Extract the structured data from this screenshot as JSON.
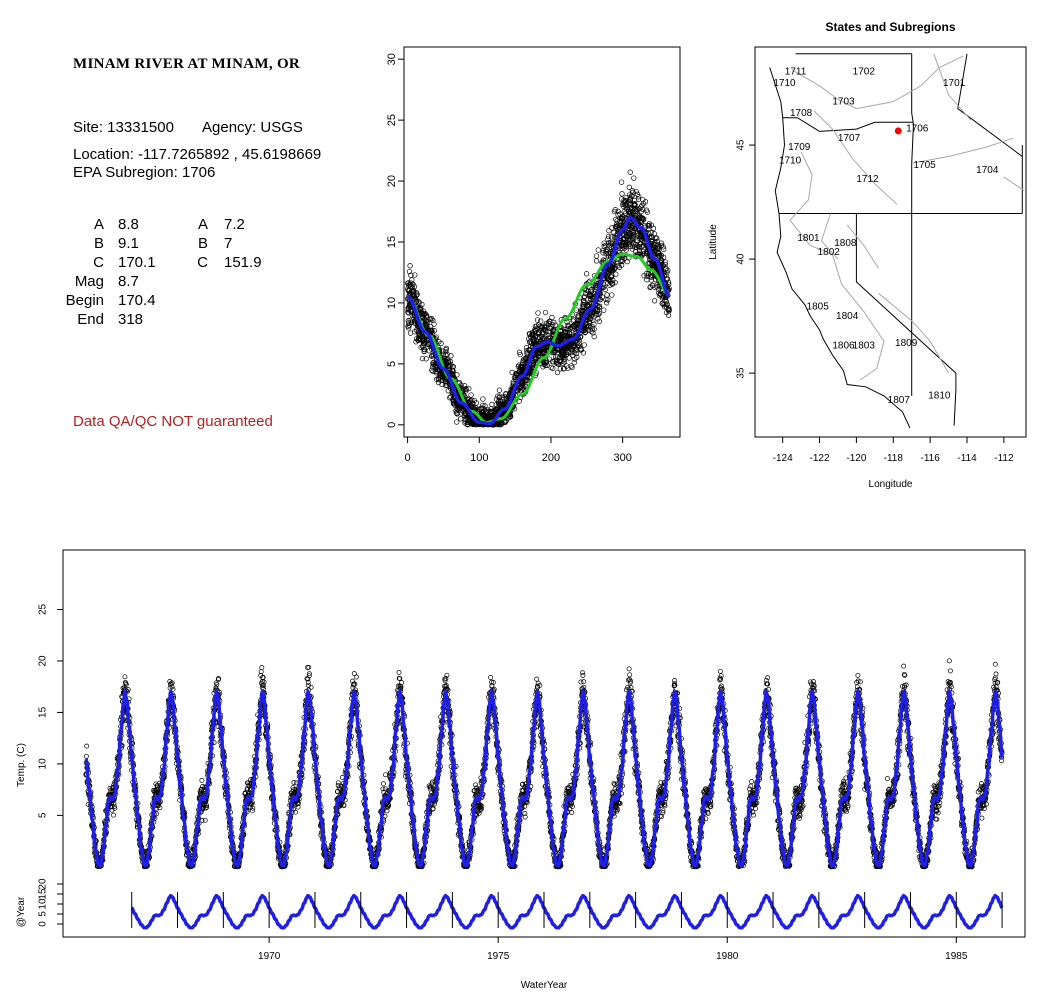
{
  "site": {
    "title": "MINAM RIVER AT MINAM, OR",
    "site_label": "Site: 13331500",
    "agency_label": "Agency: USGS",
    "location_label": "Location: -117.7265892 , 45.6198669",
    "subregion_label": "EPA Subregion: 1706",
    "params_left": [
      {
        "label": "A",
        "value": "8.8"
      },
      {
        "label": "B",
        "value": "9.1"
      },
      {
        "label": "C",
        "value": "170.1"
      },
      {
        "label": "Mag",
        "value": "8.7"
      },
      {
        "label": "Begin",
        "value": "170.4"
      },
      {
        "label": "End",
        "value": "318"
      }
    ],
    "params_right": [
      {
        "label": "A",
        "value": "7.2"
      },
      {
        "label": "B",
        "value": "7"
      },
      {
        "label": "C",
        "value": "151.9"
      }
    ],
    "qa_note": "Data QA/QC NOT guaranteed",
    "qa_color": "#b22222"
  },
  "chart_data": [
    {
      "type": "scatter",
      "title": "",
      "xlabel": "",
      "ylabel": "",
      "xlim": [
        -5,
        380
      ],
      "ylim": [
        -1,
        31
      ],
      "xticks": [
        0,
        100,
        200,
        300
      ],
      "yticks": [
        0,
        5,
        10,
        15,
        20,
        25,
        30
      ],
      "points_color": "#000000",
      "series": [
        {
          "style": "points",
          "description_values": "daily water temperature vs day of water year"
        },
        {
          "style": "line",
          "color": "#22cc22",
          "x": [
            0,
            30,
            60,
            90,
            110,
            130,
            160,
            190,
            220,
            250,
            280,
            300,
            320,
            340,
            365
          ],
          "y": [
            10.5,
            7.3,
            3.8,
            1.1,
            0.2,
            0.5,
            2.5,
            5.5,
            8.7,
            11.5,
            13.4,
            14.0,
            13.8,
            12.7,
            10.7
          ]
        },
        {
          "style": "line",
          "color": "#1f1fe6",
          "x": [
            0,
            25,
            50,
            75,
            100,
            115,
            135,
            160,
            180,
            195,
            210,
            230,
            255,
            280,
            300,
            310,
            325,
            345,
            365
          ],
          "y": [
            10.5,
            7.6,
            4.6,
            1.8,
            0.2,
            0.1,
            1.3,
            4.0,
            6.4,
            6.8,
            6.5,
            7.0,
            9.5,
            13.2,
            16.0,
            17.0,
            16.2,
            13.6,
            10.6
          ]
        }
      ]
    },
    {
      "type": "scatter",
      "title": "States and Subregions",
      "xlabel": "Longitude",
      "ylabel": "Latitude",
      "xlim": [
        -125.5,
        -110.8
      ],
      "ylim": [
        32.2,
        49.3
      ],
      "xticks": [
        -124,
        -122,
        -120,
        -118,
        -116,
        -114,
        -112
      ],
      "yticks": [
        35,
        40,
        45
      ],
      "site_marker": {
        "lon": -117.73,
        "lat": 45.62,
        "color": "#ff0000"
      },
      "region_labels": [
        {
          "name": "1711",
          "lon": -123.3,
          "lat": 48.2
        },
        {
          "name": "1710",
          "lon": -123.9,
          "lat": 47.7
        },
        {
          "name": "1702",
          "lon": -119.6,
          "lat": 48.2
        },
        {
          "name": "1701",
          "lon": -114.7,
          "lat": 47.7
        },
        {
          "name": "1703",
          "lon": -120.7,
          "lat": 46.9
        },
        {
          "name": "1708",
          "lon": -123.0,
          "lat": 46.4
        },
        {
          "name": "1706",
          "lon": -116.7,
          "lat": 45.7
        },
        {
          "name": "1707",
          "lon": -120.4,
          "lat": 45.3
        },
        {
          "name": "1709",
          "lon": -123.1,
          "lat": 44.9
        },
        {
          "name": "1710",
          "lon": -123.6,
          "lat": 44.3
        },
        {
          "name": "1705",
          "lon": -116.3,
          "lat": 44.1
        },
        {
          "name": "1704",
          "lon": -112.9,
          "lat": 43.9
        },
        {
          "name": "1712",
          "lon": -119.4,
          "lat": 43.5
        },
        {
          "name": "1801",
          "lon": -122.6,
          "lat": 40.9
        },
        {
          "name": "1808",
          "lon": -120.6,
          "lat": 40.7
        },
        {
          "name": "1802",
          "lon": -121.5,
          "lat": 40.3
        },
        {
          "name": "1805",
          "lon": -122.1,
          "lat": 37.9
        },
        {
          "name": "1804",
          "lon": -120.5,
          "lat": 37.5
        },
        {
          "name": "1809",
          "lon": -117.3,
          "lat": 36.3
        },
        {
          "name": "1806",
          "lon": -120.7,
          "lat": 36.2
        },
        {
          "name": "1803",
          "lon": -119.6,
          "lat": 36.2
        },
        {
          "name": "1810",
          "lon": -115.5,
          "lat": 34.0
        },
        {
          "name": "1807",
          "lon": -117.7,
          "lat": 33.8
        }
      ]
    },
    {
      "type": "scatter",
      "title": "",
      "xlabel": "WaterYear",
      "ylabel": "Temp. (C)",
      "ylabel_lower": "@Year",
      "xlim": [
        1965.5,
        1986.5
      ],
      "ylim": [
        -0.5,
        30
      ],
      "ylim_lower": [
        -3,
        25
      ],
      "xticks": [
        1970,
        1975,
        1980,
        1985
      ],
      "yticks": [
        5,
        10,
        15,
        20,
        25
      ],
      "yticks_lower": [
        0,
        5,
        10,
        15,
        20
      ],
      "start": 1966.0,
      "end": 1986.0,
      "series": [
        {
          "style": "points",
          "description_values": "daily water temperature observations 1966-1986"
        },
        {
          "style": "line",
          "color": "#1f1fe6",
          "description_values": "seasonal fit"
        },
        {
          "style": "line-lower",
          "color": "#1f1fe6",
          "description_values": "annual curve per year",
          "start": 1967.0
        }
      ]
    }
  ]
}
